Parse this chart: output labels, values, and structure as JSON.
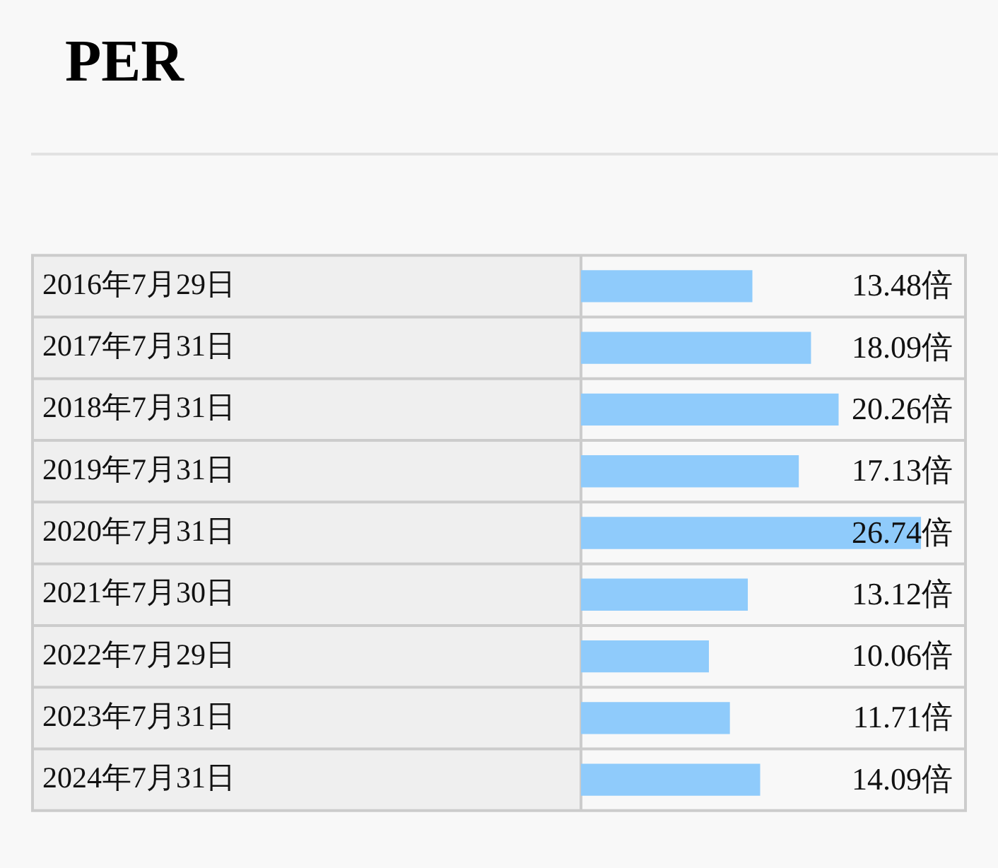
{
  "chart_data": {
    "type": "bar",
    "orientation": "horizontal",
    "title": "PER",
    "categories": [
      "2016年7月29日",
      "2017年7月31日",
      "2018年7月31日",
      "2019年7月31日",
      "2020年7月31日",
      "2021年7月30日",
      "2022年7月29日",
      "2023年7月31日",
      "2024年7月31日"
    ],
    "values": [
      13.48,
      18.09,
      20.26,
      17.13,
      26.74,
      13.12,
      10.06,
      11.71,
      14.09
    ],
    "value_labels": [
      "13.48倍",
      "18.09倍",
      "20.26倍",
      "17.13倍",
      "26.74倍",
      "13.12倍",
      "10.06倍",
      "11.71倍",
      "14.09倍"
    ],
    "color": "#8fcbfb",
    "legend": false,
    "grid": false
  }
}
